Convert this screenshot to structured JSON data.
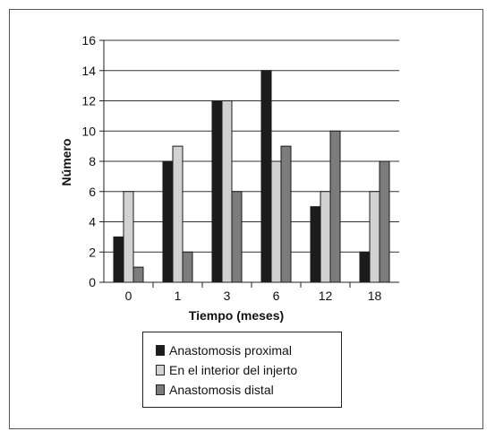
{
  "chart_data": {
    "type": "bar",
    "title": "",
    "xlabel": "Tiempo (meses)",
    "ylabel": "Número",
    "categories": [
      "0",
      "1",
      "3",
      "6",
      "12",
      "18"
    ],
    "ylim": [
      0,
      16
    ],
    "yticks": [
      "0",
      "2",
      "4",
      "6",
      "8",
      "10",
      "12",
      "14",
      "16"
    ],
    "grid": "horizontal",
    "legend_position": "bottom",
    "series": [
      {
        "name": "Anastomosis proximal",
        "color": "#1c1c1c",
        "values": [
          3,
          8,
          12,
          14,
          5,
          2
        ]
      },
      {
        "name": "En el interior del injerto",
        "color": "#d2d2d2",
        "values": [
          6,
          9,
          12,
          8,
          6,
          6
        ]
      },
      {
        "name": "Anastomosis distal",
        "color": "#7c7c7c",
        "values": [
          1,
          2,
          6,
          9,
          10,
          8
        ]
      }
    ]
  }
}
